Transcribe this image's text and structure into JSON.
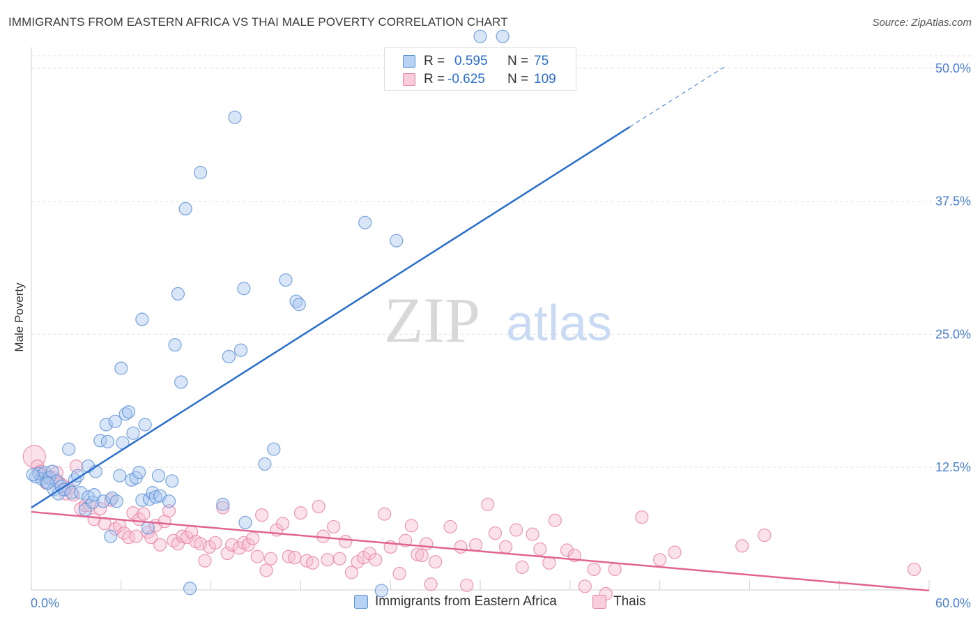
{
  "title": "IMMIGRANTS FROM EASTERN AFRICA VS THAI MALE POVERTY CORRELATION CHART",
  "source": "Source: ZipAtlas.com",
  "watermark": {
    "zip": "ZIP",
    "atlas": "atlas"
  },
  "colors": {
    "blue_fill": "#a9c8f0",
    "blue_stroke": "#5b8fd6",
    "blue_line": "#2a6fcc",
    "pink_fill": "#f6bcd0",
    "pink_stroke": "#e77fa3",
    "pink_line": "#e0648f",
    "tick_label": "#4a7fd0",
    "grid": "#e0e0e0"
  },
  "legend_top": {
    "rows": [
      {
        "r_label": "R =",
        "r_value": "0.595",
        "n_label": "N =",
        "n_value": "75",
        "series": "blue"
      },
      {
        "r_label": "R =",
        "r_value": "-0.625",
        "n_label": "N =",
        "n_value": "109",
        "series": "pink"
      }
    ]
  },
  "legend_bottom": [
    {
      "label": "Immigrants from Eastern Africa",
      "series": "blue"
    },
    {
      "label": "Thais",
      "series": "pink"
    }
  ],
  "chart_data": {
    "type": "scatter",
    "xlabel": "",
    "ylabel": "Male Poverty",
    "xlim": [
      0,
      60
    ],
    "ylim": [
      0,
      52
    ],
    "x_tick_labels": [
      {
        "value": 0,
        "label": "0.0%"
      },
      {
        "value": 60,
        "label": "60.0%"
      }
    ],
    "y_tick_labels": [
      {
        "value": 12.5,
        "label": "12.5%"
      },
      {
        "value": 25,
        "label": "25.0%"
      },
      {
        "value": 37.5,
        "label": "37.5%"
      },
      {
        "value": 50,
        "label": "50.0%"
      }
    ],
    "grid": true,
    "legend_position": "top-center",
    "series": [
      {
        "name": "Immigrants from Eastern Africa",
        "color": "blue",
        "trendline": {
          "x0": 0,
          "y0": 8.7,
          "x1": 40,
          "y1": 44.5,
          "dash_to_x": 46.5,
          "dash_to_y": 50.3
        },
        "points": [
          [
            0.3,
            11.6
          ],
          [
            0.5,
            11.9
          ],
          [
            0.7,
            11.4
          ],
          [
            0.9,
            12.0
          ],
          [
            1.0,
            11.1
          ],
          [
            1.2,
            11.5
          ],
          [
            1.4,
            12.1
          ],
          [
            1.5,
            10.4
          ],
          [
            1.7,
            11.2
          ],
          [
            1.8,
            10.0
          ],
          [
            2.0,
            10.7
          ],
          [
            2.2,
            10.4
          ],
          [
            2.5,
            14.2
          ],
          [
            2.7,
            10.1
          ],
          [
            2.9,
            11.3
          ],
          [
            3.1,
            11.7
          ],
          [
            3.3,
            10.1
          ],
          [
            3.6,
            8.5
          ],
          [
            3.8,
            9.7
          ],
          [
            3.8,
            12.6
          ],
          [
            4.1,
            9.2
          ],
          [
            4.2,
            9.9
          ],
          [
            4.3,
            12.1
          ],
          [
            4.6,
            15.0
          ],
          [
            4.8,
            9.3
          ],
          [
            5.0,
            16.5
          ],
          [
            5.1,
            14.9
          ],
          [
            5.3,
            6.0
          ],
          [
            5.4,
            9.6
          ],
          [
            5.6,
            16.8
          ],
          [
            5.7,
            9.3
          ],
          [
            5.9,
            11.7
          ],
          [
            6.1,
            14.8
          ],
          [
            6.0,
            21.8
          ],
          [
            6.3,
            17.5
          ],
          [
            6.5,
            17.7
          ],
          [
            6.7,
            11.3
          ],
          [
            6.8,
            15.7
          ],
          [
            7.0,
            11.5
          ],
          [
            7.2,
            12.0
          ],
          [
            7.4,
            9.4
          ],
          [
            7.4,
            26.4
          ],
          [
            7.6,
            16.5
          ],
          [
            7.8,
            6.8
          ],
          [
            7.9,
            9.5
          ],
          [
            8.1,
            10.1
          ],
          [
            8.3,
            9.7
          ],
          [
            8.5,
            11.7
          ],
          [
            8.6,
            9.8
          ],
          [
            9.2,
            9.3
          ],
          [
            9.4,
            11.2
          ],
          [
            9.6,
            24.0
          ],
          [
            9.8,
            28.8
          ],
          [
            10.0,
            20.5
          ],
          [
            10.3,
            36.8
          ],
          [
            10.6,
            1.1
          ],
          [
            11.3,
            40.2
          ],
          [
            12.8,
            9.0
          ],
          [
            13.2,
            22.9
          ],
          [
            13.6,
            45.4
          ],
          [
            14.0,
            23.5
          ],
          [
            14.2,
            29.3
          ],
          [
            14.3,
            7.3
          ],
          [
            15.6,
            12.8
          ],
          [
            16.2,
            14.2
          ],
          [
            17.0,
            30.1
          ],
          [
            17.7,
            28.1
          ],
          [
            17.9,
            27.8
          ],
          [
            22.3,
            35.5
          ],
          [
            23.4,
            0.9
          ],
          [
            24.4,
            33.8
          ],
          [
            30.0,
            53.0
          ],
          [
            31.5,
            53.0
          ],
          [
            0.1,
            11.8
          ],
          [
            1.1,
            11.0
          ]
        ]
      },
      {
        "name": "Thais",
        "color": "pink",
        "trendline": {
          "x0": 0,
          "y0": 8.3,
          "x1": 60,
          "y1": 0.9
        },
        "points": [
          [
            0.2,
            13.5
          ],
          [
            0.4,
            12.6
          ],
          [
            0.6,
            12.1
          ],
          [
            0.8,
            11.8
          ],
          [
            1.0,
            11.0
          ],
          [
            1.2,
            11.6
          ],
          [
            1.5,
            11.5
          ],
          [
            1.7,
            12.0
          ],
          [
            1.9,
            11.0
          ],
          [
            2.1,
            10.8
          ],
          [
            2.3,
            10.0
          ],
          [
            2.5,
            10.5
          ],
          [
            2.8,
            9.9
          ],
          [
            3.0,
            12.6
          ],
          [
            3.3,
            8.6
          ],
          [
            3.6,
            8.9
          ],
          [
            3.9,
            8.9
          ],
          [
            4.2,
            7.6
          ],
          [
            4.6,
            8.6
          ],
          [
            4.9,
            7.2
          ],
          [
            5.3,
            9.4
          ],
          [
            5.6,
            6.7
          ],
          [
            5.9,
            7.0
          ],
          [
            6.2,
            6.3
          ],
          [
            6.5,
            5.9
          ],
          [
            6.8,
            8.2
          ],
          [
            7.0,
            6.0
          ],
          [
            7.2,
            7.6
          ],
          [
            7.5,
            8.1
          ],
          [
            7.8,
            6.4
          ],
          [
            8.0,
            5.9
          ],
          [
            8.3,
            7.0
          ],
          [
            8.6,
            5.2
          ],
          [
            8.9,
            7.4
          ],
          [
            9.2,
            8.4
          ],
          [
            9.5,
            5.6
          ],
          [
            9.8,
            5.3
          ],
          [
            10.1,
            6.0
          ],
          [
            10.4,
            5.9
          ],
          [
            10.7,
            6.4
          ],
          [
            11.0,
            5.5
          ],
          [
            11.3,
            5.3
          ],
          [
            11.6,
            3.7
          ],
          [
            11.9,
            5.0
          ],
          [
            12.3,
            5.4
          ],
          [
            12.8,
            8.7
          ],
          [
            13.1,
            4.4
          ],
          [
            13.4,
            5.2
          ],
          [
            13.9,
            4.9
          ],
          [
            14.2,
            5.4
          ],
          [
            14.5,
            5.2
          ],
          [
            14.8,
            5.8
          ],
          [
            15.1,
            4.1
          ],
          [
            15.4,
            8.0
          ],
          [
            15.7,
            2.8
          ],
          [
            16.0,
            3.9
          ],
          [
            16.4,
            6.6
          ],
          [
            16.8,
            7.2
          ],
          [
            17.2,
            4.1
          ],
          [
            17.6,
            4.0
          ],
          [
            18.0,
            8.2
          ],
          [
            18.4,
            3.7
          ],
          [
            18.8,
            3.5
          ],
          [
            19.2,
            8.8
          ],
          [
            19.5,
            6.0
          ],
          [
            19.8,
            3.8
          ],
          [
            20.2,
            6.9
          ],
          [
            20.6,
            3.9
          ],
          [
            21.0,
            5.5
          ],
          [
            21.4,
            2.6
          ],
          [
            21.8,
            3.6
          ],
          [
            22.2,
            4.0
          ],
          [
            22.6,
            4.4
          ],
          [
            23.0,
            3.8
          ],
          [
            23.6,
            8.1
          ],
          [
            24.0,
            5.0
          ],
          [
            24.6,
            2.5
          ],
          [
            25.0,
            5.6
          ],
          [
            25.4,
            7.0
          ],
          [
            25.8,
            4.3
          ],
          [
            26.1,
            4.2
          ],
          [
            26.4,
            5.3
          ],
          [
            26.7,
            1.5
          ],
          [
            27.0,
            3.6
          ],
          [
            28.0,
            6.9
          ],
          [
            28.7,
            5.0
          ],
          [
            29.1,
            1.4
          ],
          [
            29.7,
            5.2
          ],
          [
            30.5,
            9.0
          ],
          [
            31.0,
            6.3
          ],
          [
            31.7,
            5.0
          ],
          [
            32.4,
            6.6
          ],
          [
            32.8,
            3.1
          ],
          [
            33.5,
            6.2
          ],
          [
            34.0,
            4.8
          ],
          [
            34.6,
            3.5
          ],
          [
            35.0,
            7.5
          ],
          [
            35.8,
            4.7
          ],
          [
            36.3,
            4.2
          ],
          [
            37.0,
            1.3
          ],
          [
            37.6,
            2.9
          ],
          [
            38.4,
            0.6
          ],
          [
            39.0,
            2.9
          ],
          [
            40.8,
            7.8
          ],
          [
            42.0,
            3.8
          ],
          [
            43.0,
            4.5
          ],
          [
            47.5,
            5.1
          ],
          [
            49.0,
            6.1
          ],
          [
            59.0,
            2.9
          ]
        ]
      }
    ]
  }
}
